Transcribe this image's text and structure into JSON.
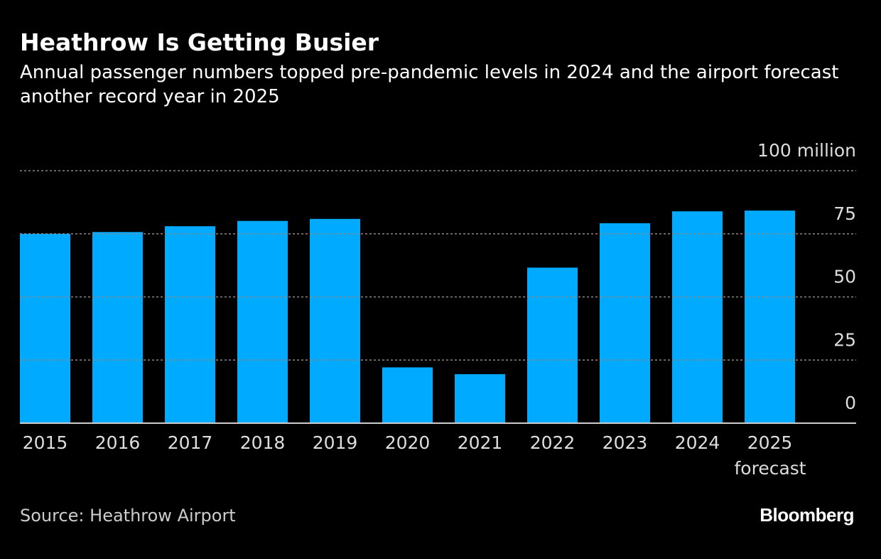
{
  "chart_data": {
    "type": "bar",
    "title": "Heathrow Is Getting Busier",
    "subtitle": "Annual passenger numbers topped pre-pandemic levels in 2024 and the airport forecast another record year in 2025",
    "categories": [
      "2015",
      "2016",
      "2017",
      "2018",
      "2019",
      "2020",
      "2021",
      "2022",
      "2023",
      "2024",
      "2025 forecast"
    ],
    "values": [
      75.0,
      75.7,
      78.0,
      80.1,
      80.9,
      22.1,
      19.4,
      61.6,
      79.2,
      83.9,
      84.2
    ],
    "color": "#00aaff",
    "ylim": [
      0,
      100
    ],
    "yticks": [
      0,
      25,
      50,
      75,
      {
        "value": 100,
        "label": "100 million"
      }
    ],
    "grid": true,
    "source": "Source: Heathrow Airport",
    "brand": "Bloomberg"
  }
}
